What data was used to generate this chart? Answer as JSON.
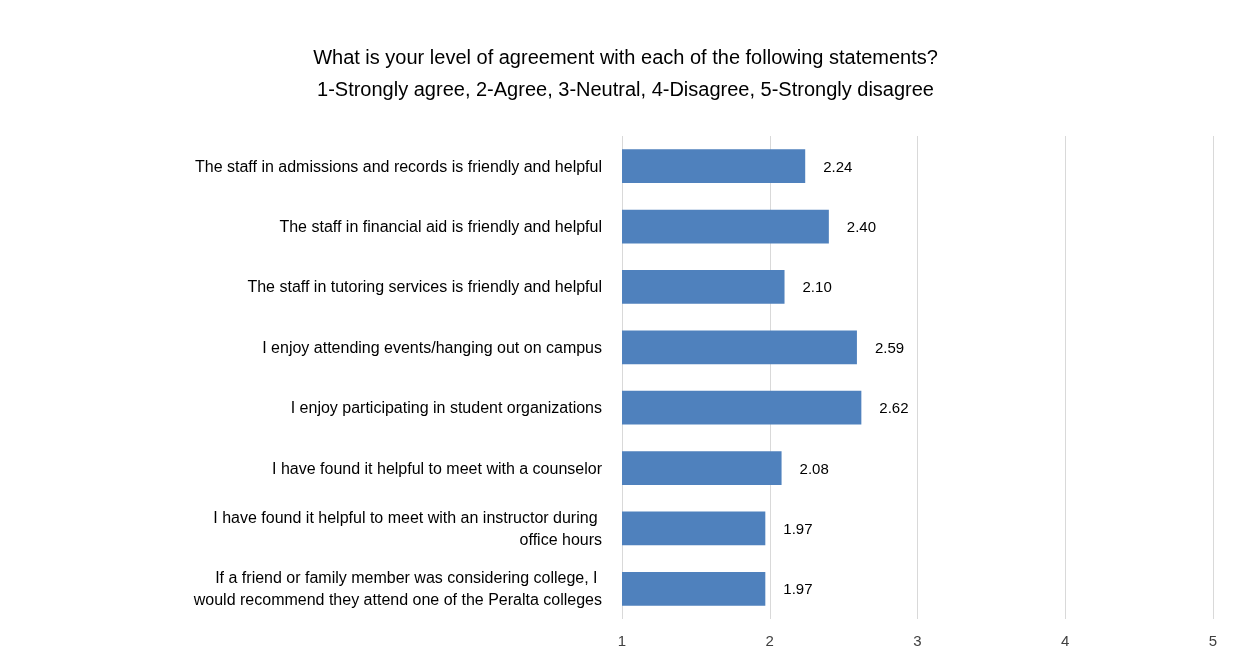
{
  "chart_data": {
    "type": "bar",
    "orientation": "horizontal",
    "title": "What is your level of agreement with each of the following statements?\n1-Strongly agree, 2-Agree, 3-Neutral, 4-Disagree, 5-Strongly disagree",
    "categories": [
      "The staff in admissions and records is friendly and helpful",
      "The staff in financial aid is friendly and helpful",
      "The staff in tutoring services is friendly and helpful",
      "I enjoy attending events/hanging out on campus",
      "I enjoy participating in student organizations",
      "I have found it helpful to meet with a counselor",
      "I have found it helpful to meet with an instructor during office hours",
      "If a friend or family member was considering college, I would recommend they attend one of the Peralta colleges"
    ],
    "values": [
      2.24,
      2.4,
      2.1,
      2.59,
      2.62,
      2.08,
      1.97,
      1.97
    ],
    "value_labels": [
      "2.24",
      "2.40",
      "2.10",
      "2.59",
      "2.62",
      "2.08",
      "1.97",
      "1.97"
    ],
    "color": "#4f81bd",
    "xlim": [
      1,
      5
    ],
    "xticks": [
      1,
      2,
      3,
      4,
      5
    ],
    "grid": "x"
  }
}
